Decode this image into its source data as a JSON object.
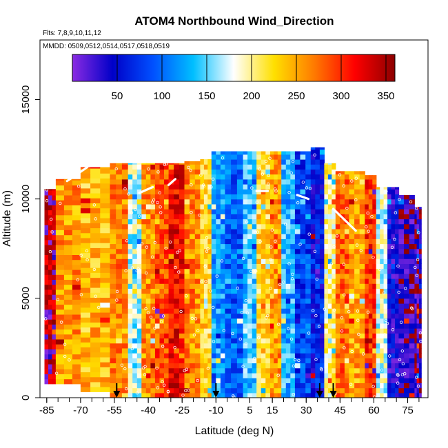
{
  "chart_data": {
    "type": "heatmap",
    "title": "ATOM4 Northbound Wind_Direction",
    "subtitle_flights": "Flts: 7,8,9,10,11,12",
    "subtitle_dates": "MMDD: 0509,0512,0514,0517,0518,0519",
    "xlabel": "Latitude (deg N)",
    "ylabel": "Altitude (m)",
    "x_ticks": [
      "-85",
      "-70",
      "-55",
      "-40",
      "-25",
      "-10",
      "5",
      "15",
      "30",
      "45",
      "60",
      "75"
    ],
    "x_tick_values": [
      -85,
      -70,
      -55,
      -40,
      -25,
      -10,
      5,
      15,
      30,
      45,
      60,
      75
    ],
    "xlim": [
      -88,
      84
    ],
    "y_ticks": [
      "0",
      "5000",
      "10000",
      "15000"
    ],
    "y_tick_values": [
      0,
      5000,
      10000,
      15000
    ],
    "ylim": [
      0,
      18000
    ],
    "colorbar": {
      "range": [
        0,
        360
      ],
      "tick_labels": [
        "50",
        "100",
        "150",
        "200",
        "250",
        "300",
        "350"
      ],
      "tick_values": [
        50,
        100,
        150,
        200,
        250,
        300,
        350
      ],
      "colors": [
        "#8a2be2",
        "#0000c8",
        "#0050ff",
        "#00bfff",
        "#ffffff",
        "#ffe000",
        "#ff7a00",
        "#ff0000",
        "#8b0000"
      ]
    },
    "markers_lat": [
      -54,
      -10,
      36,
      42
    ],
    "column_bands": [
      {
        "lat0": -86,
        "lat1": -81,
        "top": 10500,
        "base": 700,
        "dir": 345
      },
      {
        "lat0": -81,
        "lat1": -70,
        "top": 11000,
        "base": 700,
        "dir": 255
      },
      {
        "lat0": -70,
        "lat1": -57,
        "top": 11600,
        "base": 300,
        "dir": 240
      },
      {
        "lat0": -57,
        "lat1": -49,
        "top": 11800,
        "base": 0,
        "dir": 265
      },
      {
        "lat0": -49,
        "lat1": -43,
        "top": 11800,
        "base": 0,
        "dir": 170
      },
      {
        "lat0": -43,
        "lat1": -37,
        "top": 11800,
        "base": 0,
        "dir": 258
      },
      {
        "lat0": -37,
        "lat1": -31,
        "top": 11800,
        "base": 0,
        "dir": 285
      },
      {
        "lat0": -31,
        "lat1": -24,
        "top": 11800,
        "base": 0,
        "dir": 320
      },
      {
        "lat0": -24,
        "lat1": -17,
        "top": 11900,
        "base": 0,
        "dir": 262
      },
      {
        "lat0": -17,
        "lat1": -12,
        "top": 12000,
        "base": 0,
        "dir": 225
      },
      {
        "lat0": -12,
        "lat1": -6,
        "top": 12400,
        "base": 0,
        "dir": 120
      },
      {
        "lat0": -6,
        "lat1": 2,
        "top": 12400,
        "base": 0,
        "dir": 95
      },
      {
        "lat0": 2,
        "lat1": 8,
        "top": 12400,
        "base": 0,
        "dir": 140
      },
      {
        "lat0": 8,
        "lat1": 14,
        "top": 12400,
        "base": 0,
        "dir": 225
      },
      {
        "lat0": 14,
        "lat1": 19,
        "top": 12400,
        "base": 0,
        "dir": 255
      },
      {
        "lat0": 19,
        "lat1": 25,
        "top": 12400,
        "base": 0,
        "dir": 130
      },
      {
        "lat0": 25,
        "lat1": 32,
        "top": 12400,
        "base": 0,
        "dir": 80
      },
      {
        "lat0": 32,
        "lat1": 38,
        "top": 12600,
        "base": 0,
        "dir": 60
      },
      {
        "lat0": 38,
        "lat1": 43,
        "top": 11800,
        "base": 0,
        "dir": 200
      },
      {
        "lat0": 43,
        "lat1": 49,
        "top": 11400,
        "base": 0,
        "dir": 275
      },
      {
        "lat0": 49,
        "lat1": 56,
        "top": 11400,
        "base": 0,
        "dir": 250
      },
      {
        "lat0": 56,
        "lat1": 61,
        "top": 11200,
        "base": 0,
        "dir": 300
      },
      {
        "lat0": 61,
        "lat1": 66,
        "top": 10600,
        "base": 0,
        "dir": 180
      },
      {
        "lat0": 66,
        "lat1": 71,
        "top": 10600,
        "base": 0,
        "dir": 40
      },
      {
        "lat0": 71,
        "lat1": 78,
        "top": 10200,
        "base": 0,
        "dir": 20
      },
      {
        "lat0": 78,
        "lat1": 81,
        "top": 9600,
        "base": 0,
        "dir": 15
      }
    ]
  }
}
